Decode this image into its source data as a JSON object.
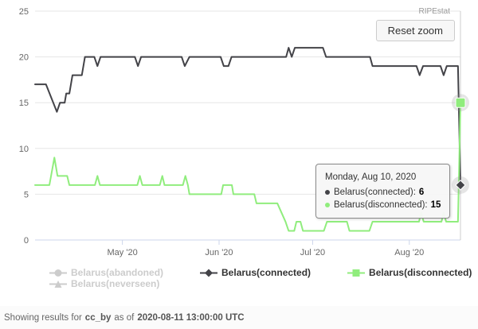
{
  "header": {
    "brand": "RIPEstat",
    "reset_zoom_label": "Reset zoom"
  },
  "tooltip": {
    "title": "Monday, Aug 10, 2020",
    "rows": [
      {
        "series": "Belarus(connected)",
        "label": "Belarus(connected):",
        "value": "6"
      },
      {
        "series": "Belarus(disconnected)",
        "label": "Belarus(disconnected):",
        "value": "15"
      }
    ]
  },
  "legend": {
    "disabled_color": "#cccccc",
    "items": [
      {
        "label": "Belarus(abandoned)",
        "marker": "circle",
        "enabled": false
      },
      {
        "label": "Belarus(neverseen)",
        "marker": "triangle",
        "enabled": false
      },
      {
        "label": "Belarus(connected)",
        "marker": "diamond",
        "enabled": true
      },
      {
        "label": "Belarus(disconnected)",
        "marker": "square",
        "enabled": true
      }
    ]
  },
  "footer": {
    "prefix": "Showing results for",
    "resource": "cc_by",
    "infix": "as of",
    "timestamp": "2020-08-11 13:00:00 UTC"
  },
  "chart_data": {
    "type": "line",
    "title": "",
    "xlabel": "",
    "ylabel": "",
    "grid": true,
    "legend_position": "bottom",
    "x_axis": {
      "unit": "days since 2020-04-03",
      "domain": [
        0,
        136.4
      ],
      "ticks": [
        {
          "day": 28,
          "label": "May '20"
        },
        {
          "day": 59,
          "label": "Jun '20"
        },
        {
          "day": 89,
          "label": "Jul '20"
        },
        {
          "day": 120,
          "label": "Aug '20"
        }
      ]
    },
    "y_axis": {
      "range": [
        0,
        25
      ],
      "ticks": [
        0,
        5,
        10,
        15,
        20,
        25
      ]
    },
    "series": [
      {
        "name": "Belarus(abandoned)",
        "color": "#cccccc",
        "enabled": false,
        "marker": "circle",
        "points": []
      },
      {
        "name": "Belarus(neverseen)",
        "color": "#cccccc",
        "enabled": false,
        "marker": "triangle",
        "points": []
      },
      {
        "name": "Belarus(connected)",
        "color": "#434348",
        "enabled": true,
        "marker": "diamond",
        "points": [
          [
            0,
            17
          ],
          [
            3.5,
            17
          ],
          [
            7,
            14
          ],
          [
            8,
            15
          ],
          [
            9.5,
            15
          ],
          [
            10,
            16
          ],
          [
            11,
            16
          ],
          [
            11.5,
            17
          ],
          [
            12,
            18
          ],
          [
            15,
            18
          ],
          [
            15.5,
            19
          ],
          [
            16,
            20
          ],
          [
            19,
            20
          ],
          [
            20,
            19
          ],
          [
            21,
            20
          ],
          [
            32,
            20
          ],
          [
            33,
            19
          ],
          [
            34,
            20
          ],
          [
            47,
            20
          ],
          [
            48,
            19
          ],
          [
            49.5,
            20
          ],
          [
            59.5,
            20
          ],
          [
            60.5,
            19
          ],
          [
            62,
            19
          ],
          [
            63,
            20
          ],
          [
            80.5,
            20
          ],
          [
            81.3,
            21
          ],
          [
            82.3,
            20
          ],
          [
            83.3,
            21
          ],
          [
            92.3,
            21
          ],
          [
            93.3,
            20
          ],
          [
            107.4,
            20
          ],
          [
            108.2,
            19
          ],
          [
            122.3,
            19
          ],
          [
            123.3,
            18
          ],
          [
            124.4,
            19
          ],
          [
            130,
            19
          ],
          [
            131,
            18
          ],
          [
            132,
            19
          ],
          [
            135.6,
            19
          ],
          [
            136.4,
            6
          ]
        ]
      },
      {
        "name": "Belarus(disconnected)",
        "color": "#90ed7d",
        "enabled": true,
        "marker": "square",
        "points": [
          [
            0,
            6
          ],
          [
            4.6,
            6
          ],
          [
            6.2,
            9
          ],
          [
            7.2,
            7
          ],
          [
            10.3,
            7
          ],
          [
            11,
            6
          ],
          [
            19.2,
            6
          ],
          [
            20,
            7
          ],
          [
            20.8,
            6
          ],
          [
            32.8,
            6
          ],
          [
            33.6,
            7
          ],
          [
            34.4,
            6
          ],
          [
            40,
            6
          ],
          [
            40.8,
            7
          ],
          [
            41.5,
            6
          ],
          [
            47.4,
            6
          ],
          [
            48.2,
            7
          ],
          [
            49,
            6
          ],
          [
            49.5,
            5
          ],
          [
            59.7,
            5
          ],
          [
            60.3,
            6
          ],
          [
            63.1,
            6
          ],
          [
            63.6,
            5
          ],
          [
            70.3,
            5
          ],
          [
            71,
            4
          ],
          [
            77.7,
            4
          ],
          [
            79,
            3
          ],
          [
            80.3,
            2
          ],
          [
            81.3,
            1
          ],
          [
            83.1,
            1
          ],
          [
            83.8,
            2
          ],
          [
            85.1,
            2
          ],
          [
            85.9,
            1
          ],
          [
            92.6,
            1
          ],
          [
            93.6,
            2
          ],
          [
            100,
            2
          ],
          [
            100.8,
            1
          ],
          [
            107.2,
            1
          ],
          [
            108.2,
            2
          ],
          [
            123.1,
            2
          ],
          [
            123.8,
            3
          ],
          [
            124.6,
            2
          ],
          [
            130.3,
            2
          ],
          [
            131,
            3
          ],
          [
            131.8,
            2
          ],
          [
            135.6,
            2
          ],
          [
            136.4,
            15
          ]
        ]
      }
    ],
    "hover": {
      "crosshair_day": 136.4,
      "markers": [
        {
          "series": "Belarus(connected)",
          "day": 136.4,
          "value": 6
        },
        {
          "series": "Belarus(disconnected)",
          "day": 136.4,
          "value": 15
        }
      ]
    },
    "colors": {
      "grid": "#e6e6e6",
      "axis": "#ccd6eb",
      "tick_label": "#666666",
      "crosshair": "#cccccc"
    }
  }
}
